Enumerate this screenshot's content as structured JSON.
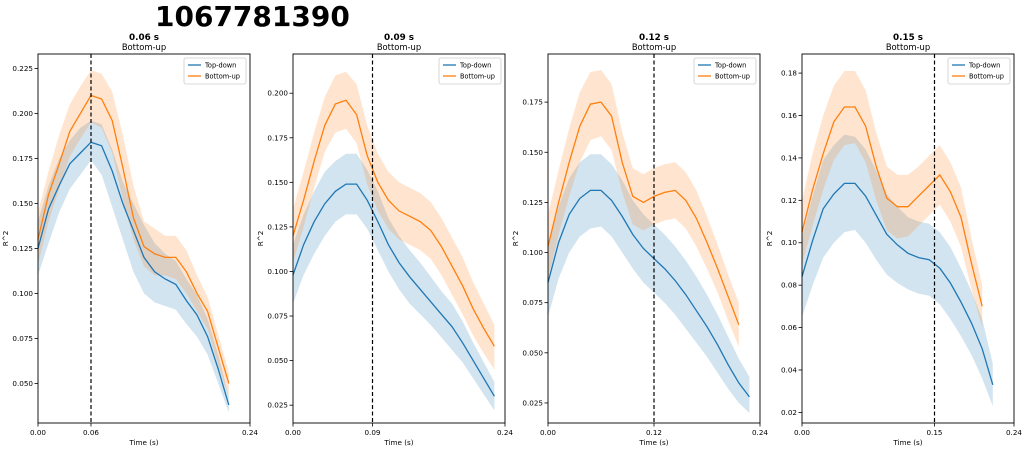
{
  "figure": {
    "title": "1067781390"
  },
  "colors": {
    "topdown": "#1f77b4",
    "bottomup": "#ff7f0e"
  },
  "chart_data": [
    {
      "type": "line",
      "title": "0.06 s",
      "subtitle": "Bottom-up",
      "xlabel": "Time (s)",
      "ylabel": "R^2",
      "xlim": [
        0,
        0.24
      ],
      "ylim": [
        0.028,
        0.233
      ],
      "xticks": [
        0,
        0.06,
        0.24
      ],
      "xtick_labels": [
        "0.00",
        "0.06",
        "0.24"
      ],
      "yticks": [
        0.05,
        0.075,
        0.1,
        0.125,
        0.15,
        0.175,
        0.2,
        0.225
      ],
      "ytick_labels": [
        "0.050",
        "0.075",
        "0.100",
        "0.125",
        "0.150",
        "0.175",
        "0.200",
        "0.225"
      ],
      "vline": 0.06,
      "legend": {
        "placement": "top-right",
        "entries": [
          "Top-down",
          "Bottom-up"
        ]
      },
      "series": [
        {
          "name": "Top-down",
          "color": "#1f77b4",
          "x": [
            0,
            0.012,
            0.024,
            0.036,
            0.048,
            0.06,
            0.072,
            0.084,
            0.096,
            0.108,
            0.12,
            0.132,
            0.144,
            0.156,
            0.168,
            0.18,
            0.192,
            0.204,
            0.216
          ],
          "y": [
            0.125,
            0.147,
            0.16,
            0.172,
            0.178,
            0.184,
            0.182,
            0.168,
            0.15,
            0.135,
            0.12,
            0.112,
            0.108,
            0.105,
            0.096,
            0.088,
            0.076,
            0.058,
            0.038
          ],
          "lower": [
            0.11,
            0.128,
            0.145,
            0.158,
            0.166,
            0.174,
            0.166,
            0.148,
            0.13,
            0.112,
            0.1,
            0.095,
            0.093,
            0.091,
            0.083,
            0.076,
            0.066,
            0.05,
            0.034
          ],
          "upper": [
            0.14,
            0.16,
            0.175,
            0.185,
            0.192,
            0.196,
            0.194,
            0.18,
            0.162,
            0.15,
            0.138,
            0.128,
            0.122,
            0.118,
            0.108,
            0.099,
            0.086,
            0.066,
            0.043
          ]
        },
        {
          "name": "Bottom-up",
          "color": "#ff7f0e",
          "x": [
            0,
            0.012,
            0.024,
            0.036,
            0.048,
            0.06,
            0.072,
            0.084,
            0.096,
            0.108,
            0.12,
            0.132,
            0.144,
            0.156,
            0.168,
            0.18,
            0.192,
            0.204,
            0.216
          ],
          "y": [
            0.13,
            0.155,
            0.172,
            0.19,
            0.2,
            0.21,
            0.208,
            0.196,
            0.17,
            0.142,
            0.126,
            0.122,
            0.12,
            0.12,
            0.112,
            0.1,
            0.09,
            0.07,
            0.05
          ],
          "lower": [
            0.116,
            0.14,
            0.158,
            0.176,
            0.186,
            0.195,
            0.192,
            0.178,
            0.152,
            0.13,
            0.115,
            0.11,
            0.11,
            0.108,
            0.1,
            0.09,
            0.08,
            0.06,
            0.043
          ],
          "upper": [
            0.145,
            0.168,
            0.188,
            0.205,
            0.215,
            0.224,
            0.222,
            0.212,
            0.188,
            0.16,
            0.14,
            0.136,
            0.132,
            0.132,
            0.124,
            0.11,
            0.098,
            0.077,
            0.056
          ]
        }
      ]
    },
    {
      "type": "line",
      "title": "0.09 s",
      "subtitle": "Bottom-up",
      "xlabel": "Time (s)",
      "ylabel": "R^2",
      "xlim": [
        0,
        0.24
      ],
      "ylim": [
        0.015,
        0.222
      ],
      "xticks": [
        0,
        0.09,
        0.24
      ],
      "xtick_labels": [
        "0.00",
        "0.09",
        "0.24"
      ],
      "yticks": [
        0.025,
        0.05,
        0.075,
        0.1,
        0.125,
        0.15,
        0.175,
        0.2
      ],
      "ytick_labels": [
        "0.025",
        "0.050",
        "0.075",
        "0.100",
        "0.125",
        "0.150",
        "0.175",
        "0.200"
      ],
      "vline": 0.09,
      "legend": {
        "placement": "top-right",
        "entries": [
          "Top-down",
          "Bottom-up"
        ]
      },
      "series": [
        {
          "name": "Top-down",
          "color": "#1f77b4",
          "x": [
            0,
            0.012,
            0.024,
            0.036,
            0.048,
            0.06,
            0.072,
            0.084,
            0.096,
            0.108,
            0.12,
            0.132,
            0.144,
            0.156,
            0.168,
            0.18,
            0.192,
            0.204,
            0.216,
            0.228
          ],
          "y": [
            0.098,
            0.115,
            0.128,
            0.138,
            0.145,
            0.149,
            0.149,
            0.14,
            0.128,
            0.115,
            0.105,
            0.097,
            0.09,
            0.083,
            0.076,
            0.069,
            0.06,
            0.05,
            0.04,
            0.03
          ],
          "lower": [
            0.082,
            0.098,
            0.11,
            0.12,
            0.128,
            0.132,
            0.132,
            0.124,
            0.112,
            0.1,
            0.09,
            0.082,
            0.076,
            0.07,
            0.063,
            0.056,
            0.049,
            0.04,
            0.031,
            0.022
          ],
          "upper": [
            0.115,
            0.132,
            0.145,
            0.156,
            0.162,
            0.166,
            0.166,
            0.157,
            0.145,
            0.13,
            0.12,
            0.112,
            0.105,
            0.097,
            0.089,
            0.082,
            0.072,
            0.06,
            0.049,
            0.038
          ]
        },
        {
          "name": "Bottom-up",
          "color": "#ff7f0e",
          "x": [
            0,
            0.012,
            0.024,
            0.036,
            0.048,
            0.06,
            0.072,
            0.084,
            0.096,
            0.108,
            0.12,
            0.132,
            0.144,
            0.156,
            0.168,
            0.18,
            0.192,
            0.204,
            0.216,
            0.228
          ],
          "y": [
            0.12,
            0.14,
            0.162,
            0.182,
            0.194,
            0.196,
            0.188,
            0.165,
            0.15,
            0.14,
            0.134,
            0.131,
            0.128,
            0.123,
            0.114,
            0.103,
            0.092,
            0.079,
            0.068,
            0.058
          ],
          "lower": [
            0.105,
            0.125,
            0.147,
            0.167,
            0.178,
            0.18,
            0.172,
            0.149,
            0.134,
            0.124,
            0.118,
            0.115,
            0.112,
            0.107,
            0.098,
            0.087,
            0.076,
            0.064,
            0.054,
            0.045
          ],
          "upper": [
            0.135,
            0.156,
            0.178,
            0.198,
            0.21,
            0.212,
            0.205,
            0.182,
            0.166,
            0.156,
            0.15,
            0.147,
            0.144,
            0.139,
            0.13,
            0.119,
            0.108,
            0.094,
            0.082,
            0.07
          ]
        }
      ]
    },
    {
      "type": "line",
      "title": "0.12 s",
      "subtitle": "Bottom-up",
      "xlabel": "Time (s)",
      "ylabel": "R^2",
      "xlim": [
        0,
        0.24
      ],
      "ylim": [
        0.015,
        0.199
      ],
      "xticks": [
        0,
        0.12,
        0.24
      ],
      "xtick_labels": [
        "0.00",
        "0.12",
        "0.24"
      ],
      "yticks": [
        0.025,
        0.05,
        0.075,
        0.1,
        0.125,
        0.15,
        0.175
      ],
      "ytick_labels": [
        "0.025",
        "0.050",
        "0.075",
        "0.100",
        "0.125",
        "0.150",
        "0.175"
      ],
      "vline": 0.12,
      "legend": {
        "placement": "top-right",
        "entries": [
          "Top-down",
          "Bottom-up"
        ]
      },
      "series": [
        {
          "name": "Top-down",
          "color": "#1f77b4",
          "x": [
            0,
            0.012,
            0.024,
            0.036,
            0.048,
            0.06,
            0.072,
            0.084,
            0.096,
            0.108,
            0.12,
            0.132,
            0.144,
            0.156,
            0.168,
            0.18,
            0.192,
            0.204,
            0.216,
            0.228
          ],
          "y": [
            0.085,
            0.105,
            0.119,
            0.127,
            0.131,
            0.131,
            0.126,
            0.118,
            0.109,
            0.102,
            0.097,
            0.092,
            0.086,
            0.079,
            0.071,
            0.063,
            0.054,
            0.044,
            0.035,
            0.028
          ],
          "lower": [
            0.068,
            0.087,
            0.1,
            0.108,
            0.112,
            0.113,
            0.108,
            0.1,
            0.092,
            0.085,
            0.08,
            0.075,
            0.069,
            0.062,
            0.055,
            0.048,
            0.04,
            0.032,
            0.025,
            0.02
          ],
          "upper": [
            0.103,
            0.123,
            0.137,
            0.145,
            0.149,
            0.149,
            0.144,
            0.136,
            0.126,
            0.119,
            0.114,
            0.109,
            0.103,
            0.096,
            0.088,
            0.079,
            0.069,
            0.058,
            0.047,
            0.038
          ]
        },
        {
          "name": "Bottom-up",
          "color": "#ff7f0e",
          "x": [
            0,
            0.012,
            0.024,
            0.036,
            0.048,
            0.06,
            0.072,
            0.084,
            0.096,
            0.108,
            0.12,
            0.132,
            0.144,
            0.156,
            0.168,
            0.18,
            0.192,
            0.204,
            0.216
          ],
          "y": [
            0.103,
            0.125,
            0.145,
            0.163,
            0.174,
            0.175,
            0.168,
            0.145,
            0.128,
            0.125,
            0.128,
            0.13,
            0.131,
            0.126,
            0.117,
            0.105,
            0.092,
            0.078,
            0.064
          ],
          "lower": [
            0.087,
            0.109,
            0.128,
            0.145,
            0.156,
            0.158,
            0.151,
            0.13,
            0.114,
            0.111,
            0.114,
            0.116,
            0.117,
            0.112,
            0.103,
            0.092,
            0.08,
            0.066,
            0.053
          ],
          "upper": [
            0.119,
            0.141,
            0.162,
            0.18,
            0.19,
            0.191,
            0.184,
            0.16,
            0.142,
            0.139,
            0.142,
            0.144,
            0.145,
            0.14,
            0.131,
            0.118,
            0.104,
            0.089,
            0.075
          ]
        }
      ]
    },
    {
      "type": "line",
      "title": "0.15 s",
      "subtitle": "Bottom-up",
      "xlabel": "Time (s)",
      "ylabel": "R^2",
      "xlim": [
        0,
        0.24
      ],
      "ylim": [
        0.015,
        0.189
      ],
      "xticks": [
        0,
        0.15,
        0.24
      ],
      "xtick_labels": [
        "0.00",
        "0.15",
        "0.24"
      ],
      "yticks": [
        0.02,
        0.04,
        0.06,
        0.08,
        0.1,
        0.12,
        0.14,
        0.16,
        0.18
      ],
      "ytick_labels": [
        "0.02",
        "0.04",
        "0.06",
        "0.08",
        "0.10",
        "0.12",
        "0.14",
        "0.16",
        "0.18"
      ],
      "vline": 0.15,
      "legend": {
        "placement": "top-right",
        "entries": [
          "Top-down",
          "Bottom-up"
        ]
      },
      "series": [
        {
          "name": "Top-down",
          "color": "#1f77b4",
          "x": [
            0,
            0.012,
            0.024,
            0.036,
            0.048,
            0.06,
            0.072,
            0.084,
            0.096,
            0.108,
            0.12,
            0.132,
            0.144,
            0.156,
            0.168,
            0.18,
            0.192,
            0.204,
            0.216
          ],
          "y": [
            0.084,
            0.101,
            0.116,
            0.123,
            0.128,
            0.128,
            0.122,
            0.113,
            0.104,
            0.099,
            0.095,
            0.093,
            0.092,
            0.088,
            0.081,
            0.072,
            0.062,
            0.05,
            0.033
          ],
          "lower": [
            0.065,
            0.08,
            0.093,
            0.1,
            0.105,
            0.106,
            0.1,
            0.092,
            0.085,
            0.081,
            0.078,
            0.076,
            0.075,
            0.071,
            0.064,
            0.056,
            0.047,
            0.036,
            0.023
          ],
          "upper": [
            0.103,
            0.122,
            0.139,
            0.146,
            0.151,
            0.15,
            0.144,
            0.134,
            0.123,
            0.117,
            0.112,
            0.11,
            0.109,
            0.105,
            0.098,
            0.088,
            0.077,
            0.064,
            0.043
          ]
        },
        {
          "name": "Bottom-up",
          "color": "#ff7f0e",
          "x": [
            0,
            0.012,
            0.024,
            0.036,
            0.048,
            0.06,
            0.072,
            0.084,
            0.096,
            0.108,
            0.12,
            0.132,
            0.144,
            0.156,
            0.168,
            0.18,
            0.192,
            0.204
          ],
          "y": [
            0.105,
            0.125,
            0.142,
            0.157,
            0.164,
            0.164,
            0.155,
            0.136,
            0.121,
            0.117,
            0.117,
            0.122,
            0.127,
            0.132,
            0.124,
            0.112,
            0.09,
            0.07
          ],
          "lower": [
            0.09,
            0.108,
            0.125,
            0.139,
            0.146,
            0.147,
            0.138,
            0.12,
            0.106,
            0.102,
            0.103,
            0.108,
            0.113,
            0.118,
            0.11,
            0.098,
            0.078,
            0.06
          ],
          "upper": [
            0.12,
            0.142,
            0.16,
            0.174,
            0.181,
            0.181,
            0.172,
            0.152,
            0.136,
            0.132,
            0.132,
            0.136,
            0.141,
            0.146,
            0.138,
            0.126,
            0.102,
            0.08
          ]
        }
      ]
    }
  ]
}
